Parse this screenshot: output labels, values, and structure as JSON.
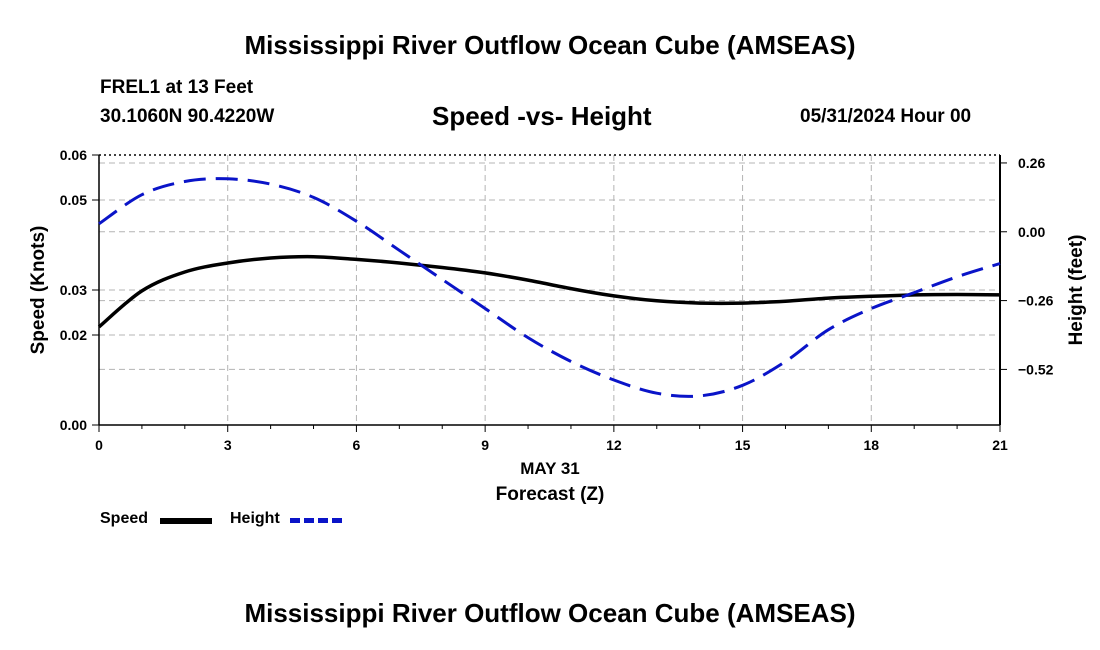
{
  "header": {
    "main_title": "Mississippi River Outflow Ocean Cube (AMSEAS)",
    "station": "FREL1 at 13 Feet",
    "coords": "30.1060N  90.4220W",
    "subtitle": "Speed -vs- Height",
    "datetime": "05/31/2024 Hour 00"
  },
  "footer": {
    "title": "Mississippi River Outflow Ocean Cube (AMSEAS)"
  },
  "legend": {
    "speed_label": "Speed",
    "height_label": "Height"
  },
  "colors": {
    "speed": "#000000",
    "height": "#0a14c8",
    "grid": "#b4b4b4"
  },
  "chart_data": {
    "type": "line",
    "title": "Speed -vs- Height",
    "xlabel": "Forecast (Z)",
    "xlabel_date": "MAY 31",
    "ylabel": "Speed (Knots)",
    "ylabel_right": "Height (feet)",
    "xlim": [
      0,
      21
    ],
    "ylim": [
      0,
      0.06
    ],
    "ylim_right": [
      -0.73,
      0.29
    ],
    "x_ticks": [
      0,
      3,
      6,
      9,
      12,
      15,
      18,
      21
    ],
    "x_tick_labels": [
      "0",
      "3",
      "6",
      "9",
      "12",
      "15",
      "18",
      "21"
    ],
    "y_ticks": [
      0.0,
      0.02,
      0.03,
      0.05,
      0.06
    ],
    "y_tick_labels": [
      "0.00",
      "0.02",
      "0.03",
      "0.05",
      "0.06"
    ],
    "y_right_ticks": [
      0.26,
      0.0,
      -0.26,
      -0.52
    ],
    "y_right_tick_labels": [
      "0.26",
      "0.00",
      "−0.26",
      "−0.52"
    ],
    "series": [
      {
        "name": "Speed",
        "axis": "left",
        "style": "solid",
        "x": [
          0,
          1,
          2,
          3,
          4,
          5,
          6,
          7,
          8,
          9,
          10,
          11,
          12,
          13,
          14,
          15,
          16,
          17,
          18,
          19,
          20,
          21
        ],
        "values": [
          0.0218,
          0.0298,
          0.034,
          0.036,
          0.0371,
          0.0374,
          0.0368,
          0.036,
          0.035,
          0.0338,
          0.0322,
          0.0303,
          0.0287,
          0.0276,
          0.0271,
          0.0271,
          0.0275,
          0.0282,
          0.0286,
          0.0289,
          0.029,
          0.0289
        ]
      },
      {
        "name": "Height",
        "axis": "right",
        "style": "dashed",
        "x": [
          0,
          1,
          2,
          3,
          4,
          5,
          6,
          7,
          8,
          9,
          10,
          11,
          12,
          13,
          14,
          15,
          16,
          17,
          18,
          19,
          20,
          21
        ],
        "values": [
          0.03,
          0.14,
          0.19,
          0.2,
          0.18,
          0.13,
          0.04,
          -0.07,
          -0.18,
          -0.29,
          -0.4,
          -0.49,
          -0.56,
          -0.61,
          -0.62,
          -0.58,
          -0.49,
          -0.37,
          -0.29,
          -0.23,
          -0.17,
          -0.12
        ]
      }
    ]
  }
}
